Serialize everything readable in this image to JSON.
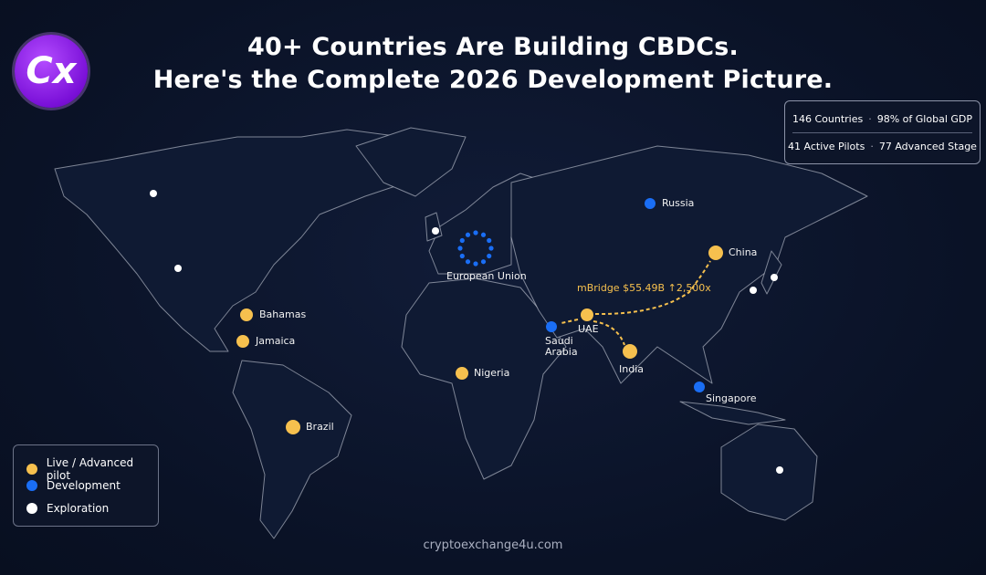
{
  "header": {
    "logo": "Cx",
    "title": [
      "40+ Countries Are Building CBDCs.",
      "Here's the Complete 2026 Development Picture."
    ]
  },
  "stats": [
    [
      "146 Countries",
      "98% of Global GDP"
    ],
    [
      "41 Active Pilots",
      "77 Advanced Stage"
    ]
  ],
  "legend": {
    "items": [
      {
        "label": "Live / Advanced pilot",
        "color": "#f6c04e",
        "places": [
          "Bahamas",
          "Jamaica",
          "Nigeria",
          "Brazil",
          "UAE",
          "India",
          "China"
        ]
      },
      {
        "label": "Development",
        "color": "#1a6ef5",
        "places": [
          "Russia",
          "European Union",
          "Saudi Arabia",
          "Singapore"
        ]
      },
      {
        "label": "Exploration",
        "color": "#ffffff",
        "places": [
          null,
          null,
          null,
          null,
          null,
          null
        ]
      }
    ]
  },
  "annotation": "mBridge $55.49B ↑2,500x",
  "footer": "cryptoexchange4u.com"
}
